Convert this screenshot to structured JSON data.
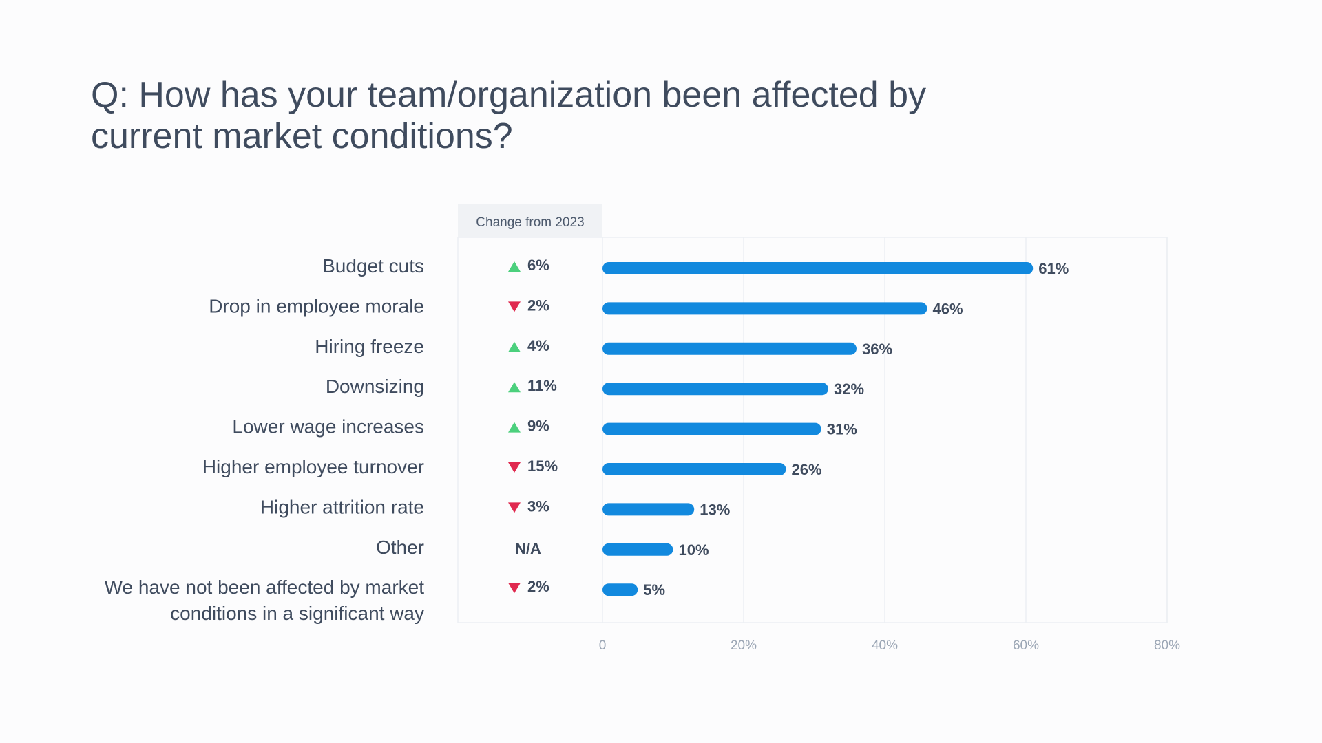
{
  "title_lines": [
    "Q: How has your team/organization been affected by",
    "current market conditions?"
  ],
  "chart_data": {
    "type": "bar",
    "orientation": "horizontal",
    "change_header": "Change from 2023",
    "categories": [
      [
        "Budget cuts"
      ],
      [
        "Drop in employee morale"
      ],
      [
        "Hiring freeze"
      ],
      [
        "Downsizing"
      ],
      [
        "Lower wage increases"
      ],
      [
        "Higher employee turnover"
      ],
      [
        "Higher attrition rate"
      ],
      [
        "Other"
      ],
      [
        "We have not been affected by market",
        "conditions in a significant way"
      ]
    ],
    "values": [
      61,
      46,
      36,
      32,
      31,
      26,
      13,
      10,
      5
    ],
    "value_labels": [
      "61%",
      "46%",
      "36%",
      "32%",
      "31%",
      "26%",
      "13%",
      "10%",
      "5%"
    ],
    "changes": [
      {
        "direction": "up",
        "text": "6%"
      },
      {
        "direction": "down",
        "text": "2%"
      },
      {
        "direction": "up",
        "text": "4%"
      },
      {
        "direction": "up",
        "text": "11%"
      },
      {
        "direction": "up",
        "text": "9%"
      },
      {
        "direction": "down",
        "text": "15%"
      },
      {
        "direction": "down",
        "text": "3%"
      },
      {
        "direction": "none",
        "text": "N/A"
      },
      {
        "direction": "down",
        "text": "2%"
      }
    ],
    "xlim": [
      0,
      80
    ],
    "xticks": [
      0,
      20,
      40,
      60,
      80
    ],
    "xtick_labels": [
      "0",
      "20%",
      "40%",
      "60%",
      "80%"
    ],
    "grid": true,
    "colors": {
      "bar": "#1289de",
      "up": "#4cd07d",
      "down": "#e0294f",
      "grid": "#eceff3",
      "header_bg": "#f0f2f5"
    }
  }
}
